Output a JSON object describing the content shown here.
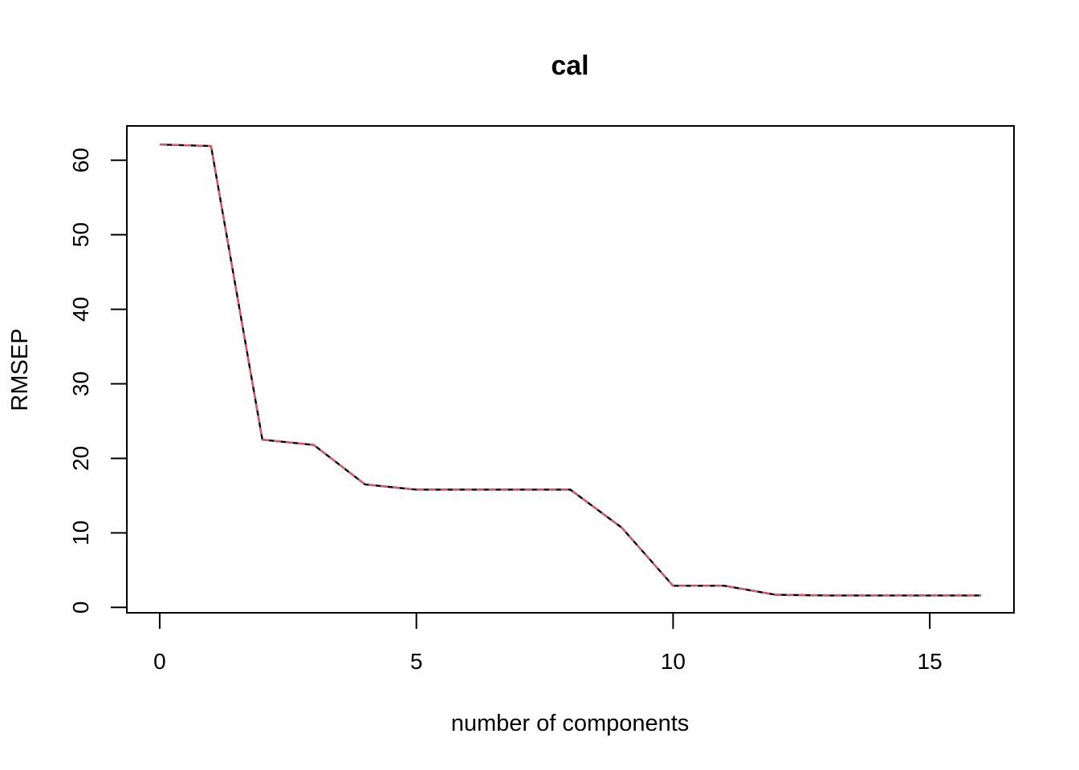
{
  "chart_data": {
    "type": "line",
    "title": "cal",
    "xlabel": "number of components",
    "ylabel": "RMSEP",
    "xlim": [
      -0.64,
      16.64
    ],
    "ylim": [
      -0.72,
      64.6
    ],
    "x_ticks": [
      0,
      5,
      10,
      15
    ],
    "y_ticks": [
      0,
      10,
      20,
      30,
      40,
      50,
      60
    ],
    "grid": false,
    "legend": "none",
    "x": [
      0,
      1,
      2,
      3,
      4,
      5,
      6,
      7,
      8,
      9,
      10,
      11,
      12,
      13,
      14,
      15,
      16
    ],
    "series": [
      {
        "color": "#000000",
        "style": "solid",
        "values": [
          62.1,
          61.9,
          22.5,
          21.8,
          16.5,
          15.8,
          15.8,
          15.8,
          15.8,
          10.7,
          2.9,
          2.9,
          1.7,
          1.6,
          1.6,
          1.6,
          1.6
        ]
      },
      {
        "color": "#DF536B",
        "style": "dashed",
        "values": [
          62.1,
          61.9,
          22.5,
          21.8,
          16.5,
          15.8,
          15.8,
          15.8,
          15.8,
          10.7,
          2.9,
          2.9,
          1.7,
          1.6,
          1.6,
          1.6,
          1.6
        ]
      }
    ]
  }
}
